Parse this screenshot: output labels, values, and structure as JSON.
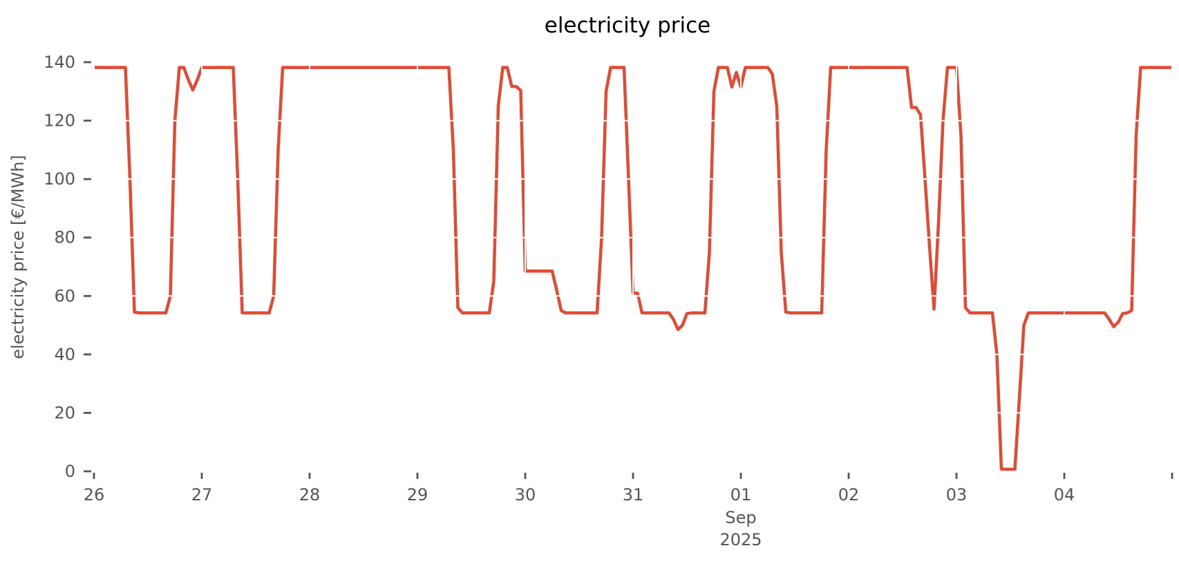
{
  "chart_data": {
    "type": "line",
    "title": "electricity price",
    "ylabel": "electricity price [€/MWh]",
    "xlabel": "",
    "ylim": [
      0,
      140
    ],
    "y_ticks": [
      0,
      20,
      40,
      60,
      80,
      100,
      120,
      140
    ],
    "x_start": "2025-08-26 00:00",
    "x_step_hours": 1,
    "x_ticks": [
      {
        "hour": 0,
        "label": "26"
      },
      {
        "hour": 24,
        "label": "27"
      },
      {
        "hour": 48,
        "label": "28"
      },
      {
        "hour": 72,
        "label": "29"
      },
      {
        "hour": 96,
        "label": "30"
      },
      {
        "hour": 120,
        "label": "31"
      },
      {
        "hour": 144,
        "label": "01",
        "sub": "Sep",
        "sub2": "2025"
      },
      {
        "hour": 168,
        "label": "02"
      },
      {
        "hour": 192,
        "label": "03"
      },
      {
        "hour": 216,
        "label": "04"
      },
      {
        "hour": 240,
        "label": ""
      }
    ],
    "legend": "none",
    "grid": "white-overlay",
    "series": [
      {
        "name": "electricity price",
        "color": "#E24A33",
        "values": [
          138.2,
          138.2,
          138.2,
          138.2,
          138.2,
          138.2,
          138.2,
          138.2,
          100,
          54.5,
          54.2,
          54.2,
          54.2,
          54.2,
          54.2,
          54.2,
          54.2,
          60,
          120,
          138.2,
          138.2,
          134,
          130.5,
          134,
          138.2,
          138.2,
          138.2,
          138.2,
          138.2,
          138.2,
          138.2,
          138.2,
          100,
          54.2,
          54.2,
          54.2,
          54.2,
          54.2,
          54.2,
          54.2,
          60,
          110,
          138.2,
          138.2,
          138.2,
          138.2,
          138.2,
          138.2,
          138.2,
          138.2,
          138.2,
          138.2,
          138.2,
          138.2,
          138.2,
          138.2,
          138.2,
          138.2,
          138.2,
          138.2,
          138.2,
          138.2,
          138.2,
          138.2,
          138.2,
          138.2,
          138.2,
          138.2,
          138.2,
          138.2,
          138.2,
          138.2,
          138.2,
          138.2,
          138.2,
          138.2,
          138.2,
          138.2,
          138.2,
          138.2,
          110,
          56,
          54.2,
          54.2,
          54.2,
          54.2,
          54.2,
          54.2,
          54.2,
          65,
          125,
          138.2,
          138.2,
          131.7,
          131.7,
          130.3,
          68.5,
          68.5,
          68.5,
          68.5,
          68.5,
          68.5,
          68.5,
          62,
          55,
          54.2,
          54.2,
          54.2,
          54.2,
          54.2,
          54.2,
          54.2,
          54.2,
          80,
          130,
          138.2,
          138.2,
          138.2,
          138.2,
          100,
          61,
          61,
          54.2,
          54.2,
          54.2,
          54.2,
          54.2,
          54.2,
          54.2,
          52,
          48.5,
          50,
          54,
          54.2,
          54.2,
          54.2,
          54.2,
          75,
          130,
          138.2,
          138.2,
          138.2,
          131.5,
          136.5,
          131.5,
          138.2,
          138.2,
          138.2,
          138.2,
          138.2,
          138.2,
          136,
          125,
          75,
          54.5,
          54.2,
          54.2,
          54.2,
          54.2,
          54.2,
          54.2,
          54.2,
          54.2,
          110,
          138.2,
          138.2,
          138.2,
          138.2,
          138.2,
          138.2,
          138.2,
          138.2,
          138.2,
          138.2,
          138.2,
          138.2,
          138.2,
          138.2,
          138.2,
          138.2,
          138.2,
          138.2,
          124.5,
          124.5,
          122,
          100,
          77,
          55.5,
          85,
          120,
          138.2,
          138.2,
          138.2,
          115,
          56,
          54.2,
          54.2,
          54.2,
          54.2,
          54.2,
          54.2,
          40,
          0.8,
          0.7,
          0.7,
          0.7,
          25,
          50,
          54.2,
          54.2,
          54.2,
          54.2,
          54.2,
          54.2,
          54.2,
          54.2,
          54.2,
          54.2,
          54.2,
          54.2,
          54.2,
          54.2,
          54.2,
          54.2,
          54.2,
          54.2,
          52,
          49.5,
          51,
          54,
          54.2,
          55,
          115,
          138.2,
          138.2,
          138.2,
          138.2,
          138.2,
          138.2,
          138.2,
          138.2
        ]
      }
    ]
  },
  "colors": {
    "background": "#ffffff",
    "line": "#E24A33",
    "tick_text": "#555555",
    "tick_mark": "#555555",
    "title_text": "#000000",
    "grid_overlay": "#ffffff"
  }
}
